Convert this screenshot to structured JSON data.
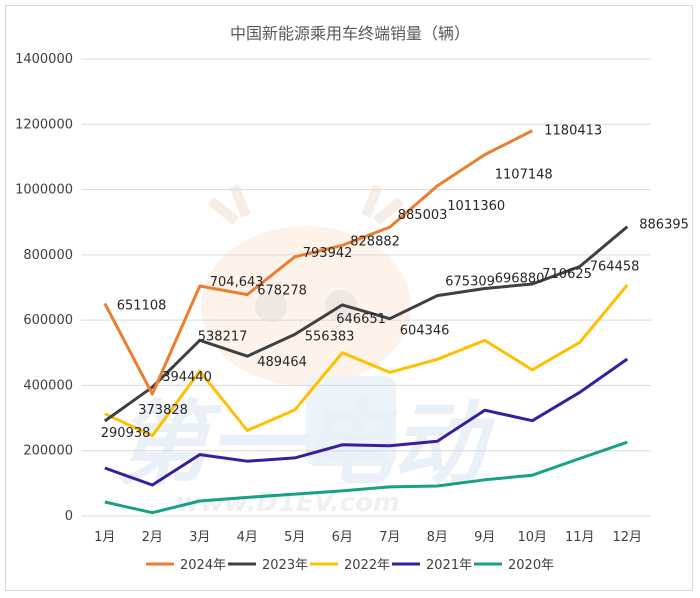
{
  "chart_data": {
    "type": "line",
    "title": "中国新能源乘用车终端销量（辆）",
    "categories": [
      "1月",
      "2月",
      "3月",
      "4月",
      "5月",
      "6月",
      "7月",
      "8月",
      "9月",
      "10月",
      "11月",
      "12月"
    ],
    "ylim": [
      0,
      1400000
    ],
    "yticks": [
      "0",
      "200000",
      "400000",
      "600000",
      "800000",
      "1000000",
      "1200000",
      "1400000"
    ],
    "grid": true,
    "legend_position": "bottom",
    "series": [
      {
        "name": "2024年",
        "color": "#ed7d31",
        "values": [
          651108,
          373828,
          704643,
          678278,
          793942,
          828882,
          885003,
          1011360,
          1107148,
          1180413,
          null,
          null
        ],
        "labels": [
          "651108",
          "373828",
          "704,643",
          "678278",
          "793942",
          "828882",
          "885003",
          "1011360",
          "1107148",
          "1180413",
          null,
          null
        ]
      },
      {
        "name": "2023年",
        "color": "#404040",
        "values": [
          290938,
          394440,
          538217,
          489464,
          556383,
          646651,
          604346,
          675309,
          696880,
          710625,
          764458,
          886395
        ],
        "labels": [
          "290938",
          "394440",
          "538217",
          "489464",
          "556383",
          "646651",
          "604346",
          "675309",
          "696880",
          "710625",
          "764458",
          "886395"
        ]
      },
      {
        "name": "2022年",
        "color": "#ffc000",
        "values": [
          313000,
          246000,
          444000,
          262000,
          325000,
          500000,
          440000,
          480000,
          538000,
          448000,
          532000,
          708000
        ],
        "labels": []
      },
      {
        "name": "2021年",
        "color": "#3a1d9c",
        "values": [
          147000,
          95000,
          188000,
          168000,
          178000,
          218000,
          215000,
          229000,
          324000,
          292000,
          379000,
          481000
        ],
        "labels": []
      },
      {
        "name": "2020年",
        "color": "#17a185",
        "values": [
          43000,
          10000,
          46000,
          57000,
          67000,
          77000,
          89000,
          92000,
          111000,
          125000,
          176000,
          226000
        ],
        "labels": []
      }
    ]
  },
  "watermark": {
    "url_text": "www.D1EV.com",
    "brand_text": "第一电动"
  }
}
